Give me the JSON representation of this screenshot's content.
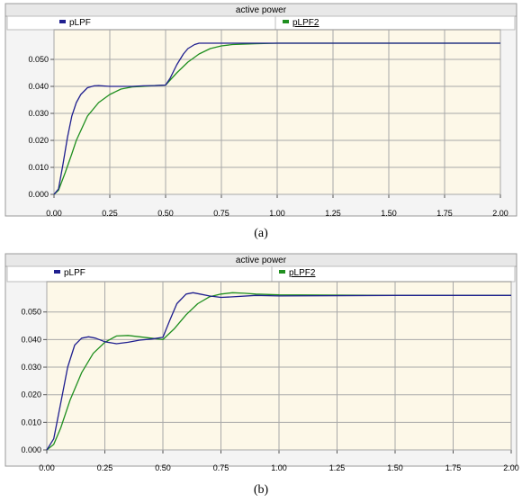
{
  "chart_data": [
    {
      "type": "line",
      "title": "active power",
      "caption": "(a)",
      "xlim": [
        0,
        2.0
      ],
      "ylim": [
        0,
        0.061
      ],
      "x_ticks": [
        "0.00",
        "0.25",
        "0.50",
        "0.75",
        "1.00",
        "1.25",
        "1.50",
        "1.75",
        "2.00"
      ],
      "y_ticks": [
        "0.000",
        "0.010",
        "0.020",
        "0.030",
        "0.040",
        "0.050"
      ],
      "grid": true,
      "legend_placement": "top",
      "series": [
        {
          "name": "pLPF",
          "color": "#1f1f8f",
          "x": [
            0,
            0.02,
            0.04,
            0.06,
            0.08,
            0.1,
            0.12,
            0.15,
            0.18,
            0.2,
            0.25,
            0.3,
            0.35,
            0.4,
            0.45,
            0.5,
            0.52,
            0.55,
            0.58,
            0.6,
            0.63,
            0.65,
            0.7,
            0.75,
            0.8,
            1.0,
            1.5,
            2.0
          ],
          "y": [
            0,
            0.002,
            0.011,
            0.021,
            0.029,
            0.034,
            0.037,
            0.0395,
            0.0402,
            0.0403,
            0.04,
            0.04,
            0.04,
            0.0402,
            0.0403,
            0.0405,
            0.043,
            0.048,
            0.052,
            0.054,
            0.0555,
            0.056,
            0.056,
            0.056,
            0.056,
            0.056,
            0.056,
            0.056
          ]
        },
        {
          "name": "pLPF2",
          "color": "#1f8f1f",
          "x": [
            0,
            0.02,
            0.05,
            0.08,
            0.1,
            0.15,
            0.2,
            0.25,
            0.3,
            0.35,
            0.4,
            0.45,
            0.5,
            0.55,
            0.6,
            0.65,
            0.7,
            0.75,
            0.8,
            0.9,
            1.0,
            1.5,
            2.0
          ],
          "y": [
            0,
            0.0015,
            0.008,
            0.015,
            0.02,
            0.029,
            0.034,
            0.037,
            0.039,
            0.0398,
            0.04,
            0.0403,
            0.0405,
            0.045,
            0.049,
            0.052,
            0.054,
            0.055,
            0.0555,
            0.0558,
            0.056,
            0.056,
            0.056
          ]
        }
      ]
    },
    {
      "type": "line",
      "title": "active power",
      "caption": "(b)",
      "xlim": [
        0,
        2.0
      ],
      "ylim": [
        0,
        0.061
      ],
      "x_ticks": [
        "0.00",
        "0.25",
        "0.50",
        "0.75",
        "1.00",
        "1.25",
        "1.50",
        "1.75",
        "2.00"
      ],
      "y_ticks": [
        "0.000",
        "0.010",
        "0.020",
        "0.030",
        "0.040",
        "0.050"
      ],
      "grid": true,
      "legend_placement": "top",
      "series": [
        {
          "name": "pLPF",
          "color": "#1f1f8f",
          "x": [
            0,
            0.03,
            0.06,
            0.09,
            0.12,
            0.15,
            0.18,
            0.21,
            0.25,
            0.3,
            0.35,
            0.4,
            0.45,
            0.5,
            0.53,
            0.56,
            0.6,
            0.63,
            0.66,
            0.7,
            0.75,
            0.8,
            0.9,
            1.0,
            1.5,
            2.0
          ],
          "y": [
            0,
            0.004,
            0.017,
            0.03,
            0.038,
            0.0405,
            0.041,
            0.0405,
            0.0392,
            0.0385,
            0.039,
            0.0398,
            0.0402,
            0.0408,
            0.047,
            0.053,
            0.0565,
            0.057,
            0.0565,
            0.0558,
            0.0553,
            0.0555,
            0.056,
            0.0558,
            0.056,
            0.056
          ]
        },
        {
          "name": "pLPF2",
          "color": "#1f8f1f",
          "x": [
            0,
            0.03,
            0.06,
            0.1,
            0.15,
            0.2,
            0.25,
            0.3,
            0.35,
            0.4,
            0.45,
            0.5,
            0.55,
            0.6,
            0.65,
            0.7,
            0.75,
            0.8,
            0.85,
            0.9,
            1.0,
            1.5,
            2.0
          ],
          "y": [
            0,
            0.002,
            0.008,
            0.018,
            0.028,
            0.035,
            0.039,
            0.0413,
            0.0415,
            0.041,
            0.0405,
            0.04,
            0.044,
            0.049,
            0.053,
            0.0555,
            0.0565,
            0.057,
            0.0568,
            0.0565,
            0.0562,
            0.056,
            0.056
          ]
        }
      ]
    }
  ]
}
